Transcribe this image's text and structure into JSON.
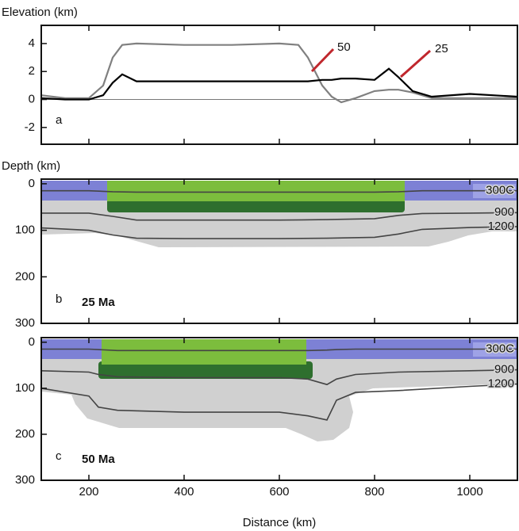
{
  "chart_data": [
    {
      "type": "line",
      "y_label": "Elevation (km)",
      "panel_label": "a",
      "annotation_color": "#c0272d",
      "zero_line": true,
      "xlim": [
        100,
        1100
      ],
      "xticks": [
        200,
        400,
        600,
        800,
        1000
      ],
      "ylim": [
        -3.2,
        5.3
      ],
      "yticks": [
        -2,
        0,
        2,
        4
      ],
      "x": [
        100,
        150,
        200,
        230,
        250,
        270,
        300,
        400,
        500,
        600,
        640,
        660,
        690,
        710,
        730,
        760,
        800,
        830,
        850,
        880,
        920,
        1000,
        1100
      ],
      "series": [
        {
          "name": "50",
          "color": "#808080",
          "values": [
            0.3,
            0.1,
            0.1,
            1.0,
            3.0,
            3.9,
            4.0,
            3.9,
            3.9,
            4.0,
            3.9,
            3.0,
            1.0,
            0.2,
            -0.2,
            0.1,
            0.6,
            0.7,
            0.7,
            0.5,
            0.1,
            0.1,
            0.1
          ]
        },
        {
          "name": "25",
          "color": "#000000",
          "values": [
            0.1,
            0,
            0,
            0.3,
            1.2,
            1.8,
            1.3,
            1.3,
            1.3,
            1.3,
            1.3,
            1.3,
            1.4,
            1.4,
            1.5,
            1.5,
            1.4,
            2.2,
            1.6,
            0.6,
            0.2,
            0.4,
            0.2
          ]
        }
      ]
    },
    {
      "type": "line",
      "y_label": "Depth (km)",
      "panel_label": "b",
      "age_label": "25 Ma",
      "xlim": [
        100,
        1100
      ],
      "xticks": [
        200,
        400,
        600,
        800,
        1000
      ],
      "ylim": [
        300,
        -10
      ],
      "yticks": [
        0,
        100,
        200,
        300
      ],
      "x": [
        100,
        200,
        250,
        300,
        400,
        500,
        600,
        700,
        800,
        850,
        900,
        1000,
        1100
      ],
      "series": [
        {
          "name": "300C",
          "color": "#444444",
          "values": [
            15,
            15,
            17,
            18,
            18,
            18,
            18,
            18,
            18,
            17,
            15,
            15,
            15
          ]
        },
        {
          "name": "900",
          "color": "#444444",
          "values": [
            63,
            63,
            70,
            78,
            78,
            78,
            78,
            77,
            75,
            68,
            64,
            63,
            62
          ]
        },
        {
          "name": "1200",
          "color": "#444444",
          "values": [
            95,
            100,
            110,
            117,
            118,
            118,
            118,
            117,
            115,
            108,
            98,
            94,
            92
          ]
        }
      ]
    },
    {
      "type": "line",
      "panel_label": "c",
      "age_label": "50 Ma",
      "x_label": "Distance (km)",
      "xlim": [
        100,
        1100
      ],
      "xticks": [
        200,
        400,
        600,
        800,
        1000
      ],
      "ylim": [
        300,
        -10
      ],
      "yticks": [
        0,
        100,
        200,
        300
      ],
      "x": [
        100,
        200,
        220,
        260,
        400,
        600,
        660,
        700,
        720,
        760,
        850,
        1000,
        1100
      ],
      "series": [
        {
          "name": "300C",
          "color": "#444444",
          "values": [
            15,
            15,
            16,
            18,
            18,
            18,
            18,
            17,
            16,
            15,
            15,
            15,
            15
          ]
        },
        {
          "name": "900",
          "color": "#444444",
          "values": [
            62,
            65,
            70,
            75,
            77,
            77,
            80,
            92,
            80,
            70,
            65,
            62,
            60
          ]
        },
        {
          "name": "1200",
          "color": "#444444",
          "values": [
            100,
            117,
            141,
            148,
            152,
            152,
            160,
            169,
            126,
            109,
            105,
            96,
            91
          ]
        }
      ]
    }
  ]
}
